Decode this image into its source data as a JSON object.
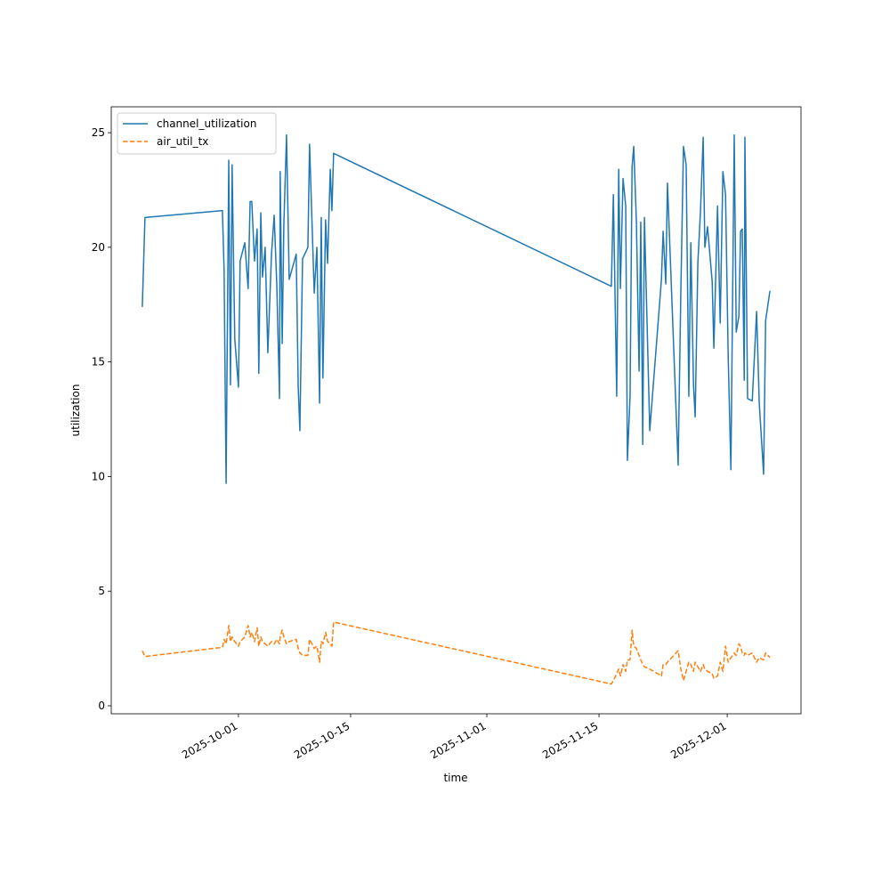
{
  "chart_data": {
    "type": "line",
    "xlabel": "time",
    "ylabel": "utilization",
    "x": [
      "2025-09-19T00:00",
      "2025-09-19T08:00",
      "2025-09-29T00:00",
      "2025-09-29T05:00",
      "2025-09-29T11:00",
      "2025-09-29T19:00",
      "2025-09-30T00:00",
      "2025-09-30T05:00",
      "2025-09-30T13:00",
      "2025-10-01T00:00",
      "2025-10-01T05:00",
      "2025-10-01T19:00",
      "2025-10-02T05:00",
      "2025-10-02T11:00",
      "2025-10-02T16:00",
      "2025-10-03T00:00",
      "2025-10-03T08:00",
      "2025-10-03T13:00",
      "2025-10-03T19:00",
      "2025-10-04T00:00",
      "2025-10-04T08:00",
      "2025-10-04T16:00",
      "2025-10-05T03:00",
      "2025-10-05T11:00",
      "2025-10-05T19:00",
      "2025-10-06T03:00",
      "2025-10-06T05:00",
      "2025-10-06T11:00",
      "2025-10-06T16:00",
      "2025-10-07T00:00",
      "2025-10-07T08:00",
      "2025-10-08T05:00",
      "2025-10-08T11:00",
      "2025-10-08T16:00",
      "2025-10-09T00:00",
      "2025-10-09T16:00",
      "2025-10-09T21:00",
      "2025-10-10T11:00",
      "2025-10-10T19:00",
      "2025-10-11T03:00",
      "2025-10-11T08:00",
      "2025-10-11T13:00",
      "2025-10-11T21:00",
      "2025-10-12T03:00",
      "2025-10-12T11:00",
      "2025-10-12T16:00",
      "2025-10-12T21:00",
      "2025-11-16T13:00",
      "2025-11-16T19:00",
      "2025-11-17T05:00",
      "2025-11-17T11:00",
      "2025-11-17T16:00",
      "2025-11-18T00:00",
      "2025-11-18T08:00",
      "2025-11-18T13:00",
      "2025-11-18T21:00",
      "2025-11-19T03:00",
      "2025-11-19T08:00",
      "2025-11-19T16:00",
      "2025-11-20T00:00",
      "2025-11-20T05:00",
      "2025-11-20T11:00",
      "2025-11-20T16:00",
      "2025-11-21T08:00",
      "2025-11-22T19:00",
      "2025-11-23T00:00",
      "2025-11-23T08:00",
      "2025-11-23T13:00",
      "2025-11-24T21:00",
      "2025-11-25T05:00",
      "2025-11-25T13:00",
      "2025-11-25T21:00",
      "2025-11-26T05:00",
      "2025-11-26T11:00",
      "2025-11-26T19:00",
      "2025-11-27T00:00",
      "2025-11-27T08:00",
      "2025-11-27T16:00",
      "2025-11-28T00:00",
      "2025-11-28T05:00",
      "2025-11-28T13:00",
      "2025-11-29T03:00",
      "2025-11-29T08:00",
      "2025-11-29T19:00",
      "2025-11-30T03:00",
      "2025-11-30T11:00",
      "2025-11-30T19:00",
      "2025-12-01T03:00",
      "2025-12-01T11:00",
      "2025-12-01T21:00",
      "2025-12-02T03:00",
      "2025-12-02T11:00",
      "2025-12-02T16:00",
      "2025-12-02T21:00",
      "2025-12-03T03:00",
      "2025-12-03T05:00",
      "2025-12-03T13:00",
      "2025-12-04T03:00",
      "2025-12-04T16:00",
      "2025-12-05T00:00",
      "2025-12-05T13:00",
      "2025-12-05T19:00",
      "2025-12-06T08:00"
    ],
    "series": [
      {
        "name": "channel_utilization",
        "color": "#1f77b4",
        "dash": false,
        "values": [
          17.4,
          21.3,
          21.6,
          19.0,
          9.7,
          23.8,
          14.0,
          23.6,
          16.0,
          13.9,
          19.4,
          20.2,
          18.2,
          22.0,
          22.0,
          19.4,
          20.8,
          14.5,
          21.5,
          18.7,
          20.0,
          15.4,
          19.7,
          21.4,
          18.3,
          13.4,
          23.3,
          15.8,
          21.0,
          24.9,
          18.6,
          19.7,
          13.9,
          12.0,
          19.5,
          20.0,
          24.5,
          18.0,
          20.0,
          13.2,
          21.3,
          14.3,
          21.2,
          19.3,
          23.4,
          21.6,
          24.1,
          18.3,
          22.3,
          13.5,
          23.4,
          18.2,
          23.0,
          21.8,
          10.7,
          13.5,
          23.5,
          24.4,
          21.1,
          14.6,
          21.1,
          11.4,
          21.3,
          12.0,
          18.6,
          20.7,
          18.4,
          22.8,
          10.5,
          18.0,
          24.4,
          23.6,
          13.5,
          20.2,
          14.0,
          12.6,
          19.3,
          21.6,
          24.8,
          20.0,
          20.9,
          18.5,
          15.6,
          21.8,
          16.7,
          23.3,
          22.3,
          15.2,
          10.3,
          24.9,
          16.3,
          17.0,
          20.7,
          20.8,
          14.2,
          24.8,
          13.4,
          13.3,
          17.2,
          13.2,
          10.1,
          16.8,
          18.1
        ]
      },
      {
        "name": "air_util_tx",
        "color": "#ff7f0e",
        "dash": true,
        "values": [
          2.4,
          2.15,
          2.55,
          2.9,
          2.7,
          3.5,
          2.8,
          3.0,
          2.8,
          2.6,
          2.8,
          3.0,
          3.5,
          3.0,
          3.2,
          2.8,
          3.4,
          2.6,
          3.0,
          2.8,
          2.7,
          2.6,
          2.8,
          2.7,
          2.9,
          2.7,
          3.0,
          3.3,
          3.0,
          2.7,
          2.8,
          2.9,
          2.5,
          2.3,
          2.2,
          2.2,
          2.9,
          2.5,
          2.6,
          1.9,
          2.8,
          2.7,
          3.2,
          2.8,
          2.7,
          2.6,
          3.65,
          0.95,
          1.1,
          1.4,
          1.6,
          1.3,
          1.8,
          1.5,
          2.0,
          2.0,
          3.3,
          2.6,
          2.5,
          2.2,
          2.0,
          1.8,
          1.7,
          1.6,
          1.3,
          1.8,
          1.8,
          1.9,
          2.4,
          1.6,
          1.1,
          1.5,
          1.9,
          1.8,
          1.5,
          1.9,
          1.7,
          1.5,
          1.8,
          1.6,
          1.5,
          1.4,
          1.2,
          1.3,
          1.9,
          1.5,
          2.6,
          1.9,
          2.1,
          2.3,
          2.2,
          2.7,
          2.6,
          2.3,
          2.2,
          2.3,
          2.2,
          2.3,
          1.9,
          2.1,
          2.0,
          2.3,
          2.1
        ]
      }
    ],
    "xlim": [
      "2025-09-15T03:00",
      "2025-12-10T05:00"
    ],
    "xticks": [
      "2025-10-01",
      "2025-10-15",
      "2025-11-01",
      "2025-11-15",
      "2025-12-01"
    ],
    "ylim": [
      -0.35,
      26.13
    ],
    "yticks": [
      0,
      5,
      10,
      15,
      20,
      25
    ],
    "legend": "upper left"
  }
}
